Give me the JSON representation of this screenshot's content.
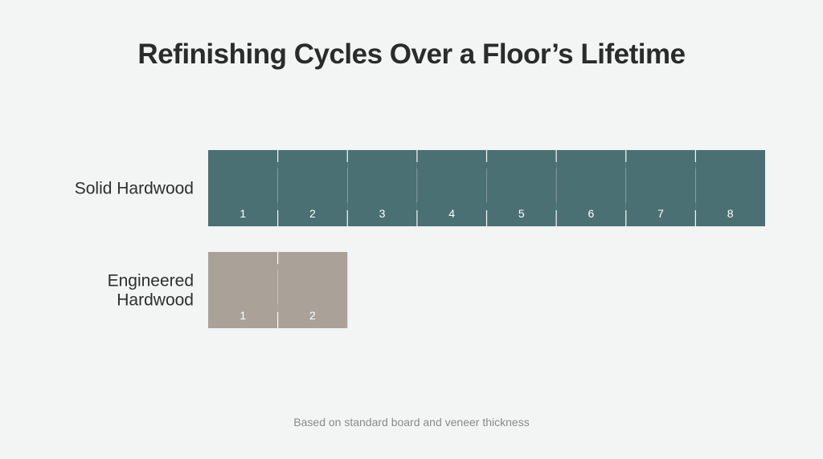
{
  "title": "Refinishing Cycles Over a Floor’s Lifetime",
  "footnote": "Based on standard board and veneer thickness",
  "colors": {
    "solid": "#4a7073",
    "engineered": "#aaa198",
    "background": "#f3f4f4"
  },
  "chart_data": {
    "type": "bar",
    "title": "Refinishing Cycles Over a Floor’s Lifetime",
    "categories": [
      "Solid Hardwood",
      "Engineered Hardwood"
    ],
    "category_lines": [
      [
        "Solid Hardwood"
      ],
      [
        "Engineered",
        "Hardwood"
      ]
    ],
    "values": [
      8,
      2
    ],
    "unit_labels": [
      [
        "1",
        "2",
        "3",
        "4",
        "5",
        "6",
        "7",
        "8"
      ],
      [
        "1",
        "2"
      ]
    ],
    "orientation": "horizontal",
    "segmented": true,
    "xlim": [
      0,
      8
    ],
    "grid": false,
    "legend": "none",
    "xlabel": "",
    "ylabel": ""
  }
}
